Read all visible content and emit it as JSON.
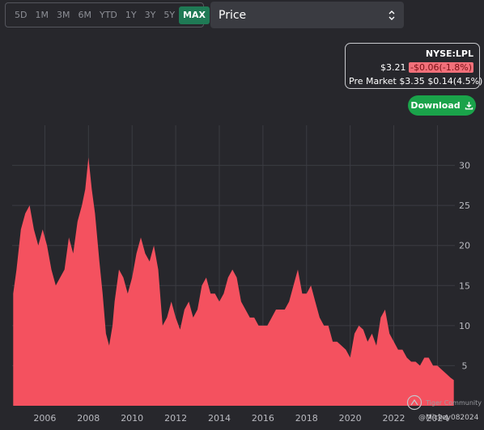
{
  "toolbar": {
    "ranges": [
      "5D",
      "1M",
      "3M",
      "6M",
      "YTD",
      "1Y",
      "3Y",
      "5Y",
      "MAX"
    ],
    "active_range": "MAX",
    "metric": "Price"
  },
  "quote": {
    "ticker": "NYSE:LPL",
    "price": "$3.21",
    "change": "-$0.06(-1.8%)",
    "premarket_label": "Pre Market",
    "premarket_price": "$3.35",
    "premarket_change": "$0.14(4.5%)"
  },
  "download_label": "Download",
  "watermark": {
    "line1": "Tiger Community",
    "line2": "@Mickey082024"
  },
  "colors": {
    "background": "#27272c",
    "area": "#f4515f",
    "active": "#1f7a55",
    "download": "#1aa34a"
  },
  "chart_data": {
    "type": "area",
    "x_ticks": [
      "2006",
      "2008",
      "2010",
      "2012",
      "2014",
      "2016",
      "2018",
      "2020",
      "2022",
      "2024"
    ],
    "y_ticks": [
      5,
      10,
      15,
      20,
      25,
      30
    ],
    "xlim": [
      2004.5,
      2024.8
    ],
    "ylim": [
      0,
      35
    ],
    "grid": true,
    "y_axis_side": "right",
    "series": [
      {
        "x": [
          2004.55,
          2004.7,
          2004.9,
          2005.1,
          2005.3,
          2005.5,
          2005.7,
          2005.9,
          2006.1,
          2006.3,
          2006.5,
          2006.7,
          2006.9,
          2007.1,
          2007.3,
          2007.5,
          2007.7,
          2007.85,
          2008.0,
          2008.15,
          2008.3,
          2008.5,
          2008.65,
          2008.8,
          2008.95,
          2009.1,
          2009.2,
          2009.4,
          2009.6,
          2009.8,
          2010.0,
          2010.2,
          2010.4,
          2010.6,
          2010.8,
          2011.0,
          2011.2,
          2011.4,
          2011.6,
          2011.8,
          2012.0,
          2012.2,
          2012.4,
          2012.6,
          2012.8,
          2013.0,
          2013.2,
          2013.4,
          2013.6,
          2013.8,
          2014.0,
          2014.2,
          2014.4,
          2014.6,
          2014.8,
          2015.0,
          2015.2,
          2015.4,
          2015.6,
          2015.8,
          2016.0,
          2016.2,
          2016.4,
          2016.6,
          2016.8,
          2017.0,
          2017.2,
          2017.4,
          2017.6,
          2017.8,
          2018.0,
          2018.2,
          2018.4,
          2018.6,
          2018.8,
          2019.0,
          2019.2,
          2019.4,
          2019.6,
          2019.8,
          2020.0,
          2020.2,
          2020.4,
          2020.6,
          2020.8,
          2021.0,
          2021.2,
          2021.4,
          2021.6,
          2021.8,
          2022.0,
          2022.2,
          2022.4,
          2022.6,
          2022.8,
          2023.0,
          2023.2,
          2023.4,
          2023.6,
          2023.8,
          2024.0,
          2024.2,
          2024.4,
          2024.6,
          2024.75
        ],
        "y": [
          14,
          17,
          22,
          24,
          25,
          22,
          20,
          22,
          20,
          17,
          15,
          16,
          17,
          21,
          19,
          23,
          25,
          27,
          31,
          27,
          24,
          18,
          14,
          9,
          7.5,
          10,
          13,
          17,
          16,
          14,
          16,
          19,
          21,
          19,
          18,
          20,
          17,
          10,
          11,
          13,
          11,
          9.5,
          12,
          13,
          11,
          12,
          15,
          16,
          14,
          14,
          13,
          14,
          16,
          17,
          16,
          13,
          12,
          11,
          11,
          10,
          10,
          10,
          11,
          12,
          12,
          12,
          13,
          15,
          17,
          14,
          14,
          15,
          13,
          11,
          10,
          10,
          8,
          8,
          7.5,
          7,
          6,
          9,
          10,
          9.5,
          8,
          9,
          7.5,
          11,
          12,
          9,
          8,
          7,
          7,
          6,
          5.5,
          5.5,
          5,
          6,
          6,
          5,
          5,
          4.5,
          4,
          3.5,
          3.2
        ]
      }
    ]
  }
}
